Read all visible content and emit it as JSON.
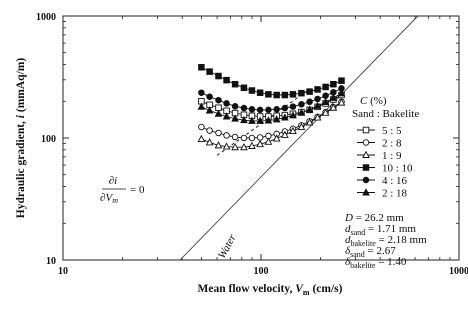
{
  "chart_data": {
    "type": "scatter",
    "title": "",
    "xlabel": "Mean flow velocity, V_m (cm/s)",
    "xlabel_main": "Mean flow velocity, ",
    "xlabel_var": "V",
    "xlabel_var_sub": "m",
    "xlabel_unit": " (cm/s)",
    "ylabel": "Hydraulic gradient, i (mmAq/m)",
    "ylabel_main": "Hydraulic gradient, ",
    "ylabel_var": "i",
    "ylabel_unit": " (mmAq/m)",
    "x_scale": "log",
    "y_scale": "log",
    "xlim": [
      10,
      1000
    ],
    "ylim": [
      10,
      1000
    ],
    "x_ticks": [
      "10",
      "100",
      "1000"
    ],
    "y_ticks": [
      "10",
      "100",
      "1000"
    ],
    "x_tick_values": [
      10,
      100,
      1000
    ],
    "y_tick_values": [
      10,
      100,
      1000
    ],
    "legend": {
      "title": "C (%)",
      "title_var": "C",
      "title_unit": " (%)",
      "subtitle": "Sand : Bakelite",
      "placement": "right"
    },
    "series": [
      {
        "name": "5 : 5",
        "marker": "square-open",
        "x": [
          50,
          55,
          61,
          67,
          74,
          82,
          90,
          99,
          109,
          120,
          132,
          145,
          160,
          176,
          193,
          212,
          232,
          255
        ],
        "y": [
          200,
          187,
          177,
          167,
          160,
          155,
          152,
          150,
          150,
          152,
          154,
          158,
          163,
          170,
          180,
          192,
          207,
          225
        ]
      },
      {
        "name": "2 : 8",
        "marker": "circle-open",
        "x": [
          50,
          55,
          61,
          67,
          74,
          82,
          90,
          99,
          109,
          120,
          132,
          145,
          160,
          176,
          193,
          212,
          232,
          255
        ],
        "y": [
          123,
          115,
          110,
          105,
          102,
          100,
          100,
          101,
          104,
          108,
          113,
          119,
          127,
          137,
          149,
          163,
          179,
          198
        ]
      },
      {
        "name": "1 : 9",
        "marker": "triangle-open",
        "x": [
          50,
          55,
          61,
          67,
          74,
          82,
          90,
          99,
          109,
          120,
          132,
          145,
          160,
          176,
          193,
          212,
          232,
          255
        ],
        "y": [
          98,
          92,
          87,
          85,
          84,
          84,
          86,
          89,
          93,
          99,
          106,
          114,
          123,
          134,
          147,
          161,
          177,
          195
        ]
      },
      {
        "name": "10 : 10",
        "marker": "square-filled",
        "x": [
          50,
          55,
          61,
          67,
          74,
          82,
          90,
          99,
          109,
          120,
          132,
          145,
          160,
          176,
          193,
          212,
          232,
          255
        ],
        "y": [
          380,
          350,
          322,
          298,
          276,
          258,
          245,
          235,
          228,
          225,
          225,
          228,
          233,
          240,
          250,
          262,
          276,
          295
        ]
      },
      {
        "name": "4 : 16",
        "marker": "circle-filled",
        "x": [
          50,
          55,
          61,
          67,
          74,
          82,
          90,
          99,
          109,
          120,
          132,
          145,
          160,
          176,
          193,
          212,
          232,
          255
        ],
        "y": [
          235,
          218,
          204,
          192,
          182,
          176,
          172,
          170,
          170,
          172,
          176,
          181,
          189,
          198,
          209,
          222,
          237,
          255
        ]
      },
      {
        "name": "2 : 18",
        "marker": "triangle-filled",
        "x": [
          50,
          55,
          61,
          67,
          74,
          82,
          90,
          99,
          109,
          120,
          132,
          145,
          160,
          176,
          193,
          212,
          232,
          255
        ],
        "y": [
          180,
          168,
          158,
          150,
          144,
          140,
          138,
          138,
          139,
          142,
          147,
          153,
          161,
          171,
          183,
          197,
          213,
          232
        ]
      }
    ],
    "water_line": {
      "label": "Water",
      "x": [
        39,
        620
      ],
      "y": [
        10,
        1000
      ]
    },
    "zero_slope_line": {
      "x": [
        60,
        175
      ],
      "y": [
        72,
        250
      ]
    },
    "zero_slope_label": {
      "numerator": "∂i",
      "denominator": "∂V",
      "denominator_sub": "m",
      "equals": "= 0"
    },
    "parameters": [
      {
        "symbol": "D",
        "sub": "",
        "text": " = 26.2 mm"
      },
      {
        "symbol": "d",
        "sub": "sand",
        "text": " = 1.71 mm"
      },
      {
        "symbol": "d",
        "sub": "bakelite",
        "text": " = 2.18 mm"
      },
      {
        "symbol": "δ",
        "sub": "sand",
        "text": " = 2.67"
      },
      {
        "symbol": "δ",
        "sub": "bakelite",
        "text": " = 1.40"
      }
    ],
    "grid": false
  }
}
